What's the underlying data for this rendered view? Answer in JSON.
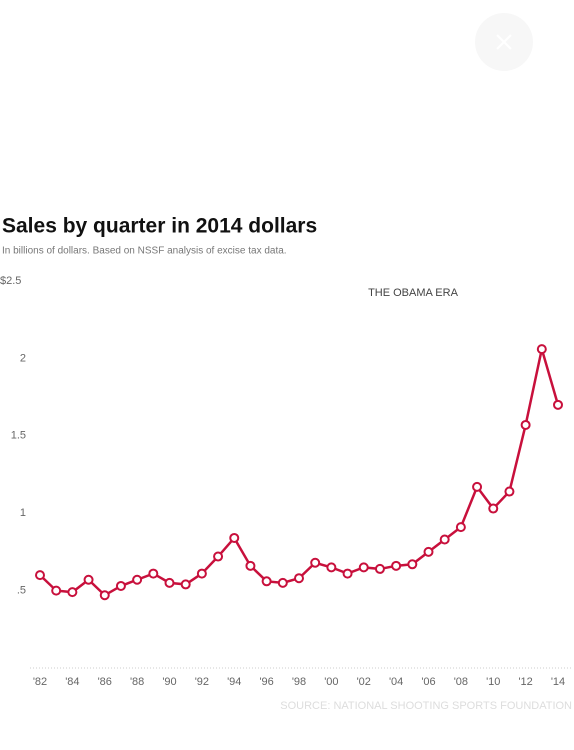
{
  "chart_data": {
    "type": "line",
    "title": "Sales by quarter in 2014 dollars",
    "subtitle": "In billions of dollars. Based on NSSF analysis of excise tax data.",
    "annotation": "THE OBAMA ERA",
    "source": "SOURCE: NATIONAL SHOOTING SPORTS FOUNDATION",
    "color": "#c8103c",
    "x": [
      1982,
      1983,
      1984,
      1985,
      1986,
      1987,
      1988,
      1989,
      1990,
      1991,
      1992,
      1993,
      1994,
      1995,
      1996,
      1997,
      1998,
      1999,
      2000,
      2001,
      2002,
      2003,
      2004,
      2005,
      2006,
      2007,
      2008,
      2009,
      2010,
      2011,
      2012,
      2013,
      2014
    ],
    "values": [
      0.6,
      0.5,
      0.49,
      0.57,
      0.47,
      0.53,
      0.57,
      0.61,
      0.55,
      0.54,
      0.61,
      0.72,
      0.84,
      0.66,
      0.56,
      0.55,
      0.58,
      0.68,
      0.65,
      0.61,
      0.65,
      0.64,
      0.66,
      0.67,
      0.75,
      0.83,
      0.91,
      1.17,
      1.03,
      1.14,
      1.57,
      2.06,
      1.7
    ],
    "xlim": [
      1982,
      2014
    ],
    "xticks": [
      {
        "value": 1982,
        "label": "'82"
      },
      {
        "value": 1984,
        "label": "'84"
      },
      {
        "value": 1986,
        "label": "'86"
      },
      {
        "value": 1988,
        "label": "'88"
      },
      {
        "value": 1990,
        "label": "'90"
      },
      {
        "value": 1992,
        "label": "'92"
      },
      {
        "value": 1994,
        "label": "'94"
      },
      {
        "value": 1996,
        "label": "'96"
      },
      {
        "value": 1998,
        "label": "'98"
      },
      {
        "value": 2000,
        "label": "'00"
      },
      {
        "value": 2002,
        "label": "'02"
      },
      {
        "value": 2004,
        "label": "'04"
      },
      {
        "value": 2006,
        "label": "'06"
      },
      {
        "value": 2008,
        "label": "'08"
      },
      {
        "value": 2010,
        "label": "'10"
      },
      {
        "value": 2012,
        "label": "'12"
      },
      {
        "value": 2014,
        "label": "'14"
      }
    ],
    "ylim": [
      0,
      2.5
    ],
    "yticks": [
      {
        "value": 0.5,
        "label": ".5"
      },
      1,
      1.5,
      2,
      {
        "value": 2.5,
        "label": "$2.5"
      }
    ],
    "grid": false
  }
}
